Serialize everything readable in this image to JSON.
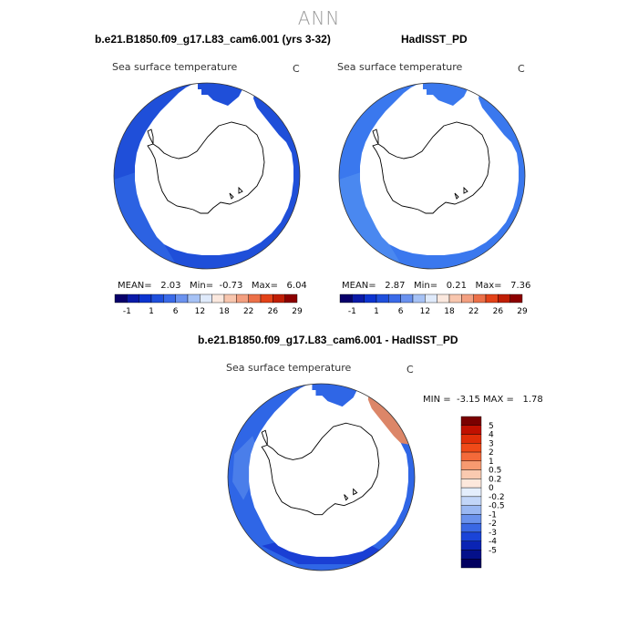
{
  "season": "ANN",
  "colors": {
    "land": "#ffffff",
    "coast": "#000000",
    "ocean_cold": "#2a5fe0",
    "ocean_mid": "#1f4fd9",
    "ocean_warm": "#3a78ee"
  },
  "panels": [
    {
      "title": "b.e21.B1850.f09_g17.L83_cam6.001 (yrs 3-32)",
      "variable": "Sea surface temperature",
      "units": "C",
      "stats": {
        "mean_label": "MEAN=",
        "mean": "2.03",
        "min_label": "Min=",
        "min": "-0.73",
        "max_label": "Max=",
        "max": "6.04"
      }
    },
    {
      "title": "HadISST_PD",
      "variable": "Sea surface temperature",
      "units": "C",
      "stats": {
        "mean_label": "MEAN=",
        "mean": "2.87",
        "min_label": "Min=",
        "min": "0.21",
        "max_label": "Max=",
        "max": "7.36"
      }
    }
  ],
  "abs_colorbar": {
    "colors": [
      "#08006a",
      "#0a1aa8",
      "#0c34d0",
      "#1f4fdc",
      "#3a6ae8",
      "#6a92ef",
      "#a6c2f5",
      "#dfeafb",
      "#fbe8de",
      "#f8c6ae",
      "#f39f80",
      "#ec7048",
      "#e34218",
      "#c01e05",
      "#8c0000"
    ],
    "labels": [
      "-1",
      "1",
      "6",
      "12",
      "18",
      "22",
      "26",
      "29"
    ]
  },
  "diff_panel": {
    "title": "b.e21.B1850.f09_g17.L83_cam6.001 - HadISST_PD",
    "variable": "Sea surface temperature",
    "units": "C",
    "min_label": "MIN =",
    "min": "-3.15",
    "max_label": "MAX =",
    "max": "1.78"
  },
  "diff_colorbar": {
    "colors": [
      "#7a0000",
      "#c01000",
      "#e02e08",
      "#f04a18",
      "#f46a3a",
      "#f79a70",
      "#facab0",
      "#fde8dc",
      "#e4eefc",
      "#c2d6f8",
      "#9ab8f2",
      "#6a92ec",
      "#3a68e4",
      "#1a44d8",
      "#0a24b4",
      "#04108a",
      "#020060"
    ],
    "labels": [
      "5",
      "4",
      "3",
      "2",
      "1",
      "0.5",
      "0.2",
      "0",
      "-0.2",
      "-0.5",
      "-1",
      "-2",
      "-3",
      "-4",
      "-5"
    ]
  }
}
